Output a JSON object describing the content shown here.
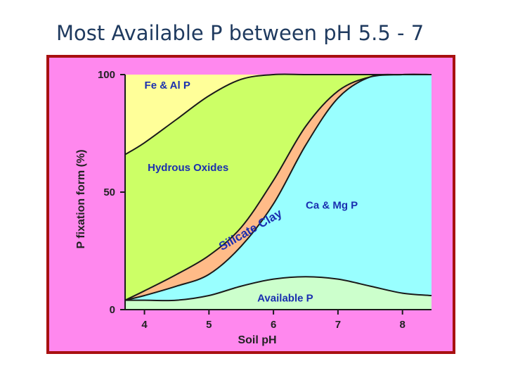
{
  "slide": {
    "title": "Most Available P  between pH 5.5 - 7"
  },
  "colors": {
    "frame": "#ff88ee",
    "frame_border": "#a81010",
    "fe_al_p": "#ffff99",
    "hydrous_oxides": "#ccff66",
    "silicate_clay": "#ffbb88",
    "ca_mg_p": "#99ffff",
    "available_p": "#ccffcc",
    "region_label": "#1a2fb0"
  },
  "chart_data": {
    "type": "area",
    "title": "",
    "xlabel": "Soil pH",
    "ylabel": "P fixation form (%)",
    "xlim": [
      3.7,
      8.45
    ],
    "ylim": [
      0,
      100
    ],
    "x_ticks": [
      "4",
      "5",
      "6",
      "7",
      "8"
    ],
    "y_ticks": [
      "0",
      "50",
      "100"
    ],
    "grid": false,
    "boundaries": {
      "fe_al_upper": [
        {
          "x": 3.7,
          "y": 66
        },
        {
          "x": 4.0,
          "y": 71
        },
        {
          "x": 4.5,
          "y": 81
        },
        {
          "x": 5.0,
          "y": 91
        },
        {
          "x": 5.5,
          "y": 98
        },
        {
          "x": 6.0,
          "y": 100
        },
        {
          "x": 6.5,
          "y": 100
        },
        {
          "x": 7.0,
          "y": 100
        },
        {
          "x": 8.0,
          "y": 100
        },
        {
          "x": 8.45,
          "y": 100
        }
      ],
      "hydrous_upper": [
        {
          "x": 3.7,
          "y": 4
        },
        {
          "x": 4.0,
          "y": 6
        },
        {
          "x": 4.5,
          "y": 10
        },
        {
          "x": 5.0,
          "y": 15
        },
        {
          "x": 5.5,
          "y": 27
        },
        {
          "x": 6.0,
          "y": 45
        },
        {
          "x": 6.5,
          "y": 70
        },
        {
          "x": 7.0,
          "y": 90
        },
        {
          "x": 7.5,
          "y": 99
        },
        {
          "x": 8.0,
          "y": 100
        },
        {
          "x": 8.45,
          "y": 100
        }
      ],
      "clay_upper": [
        {
          "x": 3.7,
          "y": 4
        },
        {
          "x": 4.0,
          "y": 8
        },
        {
          "x": 4.5,
          "y": 15
        },
        {
          "x": 5.0,
          "y": 23
        },
        {
          "x": 5.5,
          "y": 35
        },
        {
          "x": 6.0,
          "y": 55
        },
        {
          "x": 6.5,
          "y": 78
        },
        {
          "x": 7.0,
          "y": 93
        },
        {
          "x": 7.5,
          "y": 99
        },
        {
          "x": 8.0,
          "y": 100
        },
        {
          "x": 8.45,
          "y": 100
        }
      ],
      "available_upper": [
        {
          "x": 3.7,
          "y": 4
        },
        {
          "x": 4.0,
          "y": 4
        },
        {
          "x": 4.5,
          "y": 4
        },
        {
          "x": 5.0,
          "y": 6
        },
        {
          "x": 5.5,
          "y": 10
        },
        {
          "x": 6.0,
          "y": 13
        },
        {
          "x": 6.5,
          "y": 14
        },
        {
          "x": 7.0,
          "y": 13
        },
        {
          "x": 7.5,
          "y": 10
        },
        {
          "x": 8.0,
          "y": 7
        },
        {
          "x": 8.45,
          "y": 6
        }
      ]
    },
    "annotations": [
      {
        "text": "Fe & Al P",
        "x": 4.0,
        "y": 94,
        "size": 15
      },
      {
        "text": "Hydrous Oxides",
        "x": 4.05,
        "y": 59,
        "size": 15
      },
      {
        "text": "Silicate Clay",
        "x": 5.2,
        "y": 25,
        "size": 17,
        "rotate": -30
      },
      {
        "text": "Ca & Mg P",
        "x": 6.5,
        "y": 43,
        "size": 15
      },
      {
        "text": "Available P",
        "x": 5.75,
        "y": 3.5,
        "size": 15
      }
    ]
  }
}
